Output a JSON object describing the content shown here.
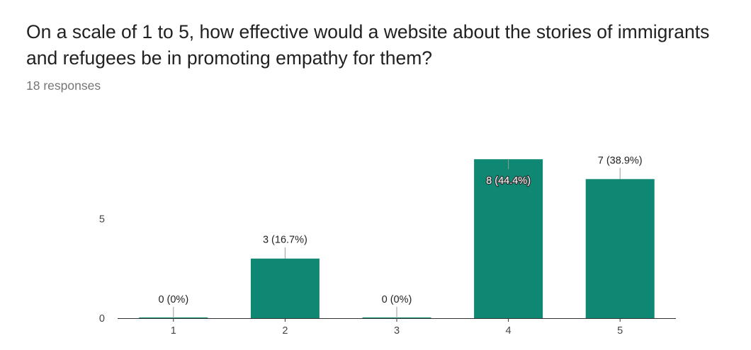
{
  "question": {
    "title": "On a scale of 1 to 5, how effective would a website about the stories of immigrants and refugees be in promoting empathy for them?",
    "responses": "18 responses"
  },
  "colors": {
    "bar": "#0e8872",
    "axis": "#333333",
    "leader": "#999999"
  },
  "chart_data": {
    "type": "bar",
    "categories": [
      "1",
      "2",
      "3",
      "4",
      "5"
    ],
    "values": [
      0,
      3,
      0,
      8,
      7
    ],
    "data_labels": [
      "0 (0%)",
      "3 (16.7%)",
      "0 (0%)",
      "8 (44.4%)",
      "7 (38.9%)"
    ],
    "yticks": [
      0,
      5
    ],
    "ylim": [
      0,
      8
    ],
    "grid": false,
    "legend": "none"
  }
}
